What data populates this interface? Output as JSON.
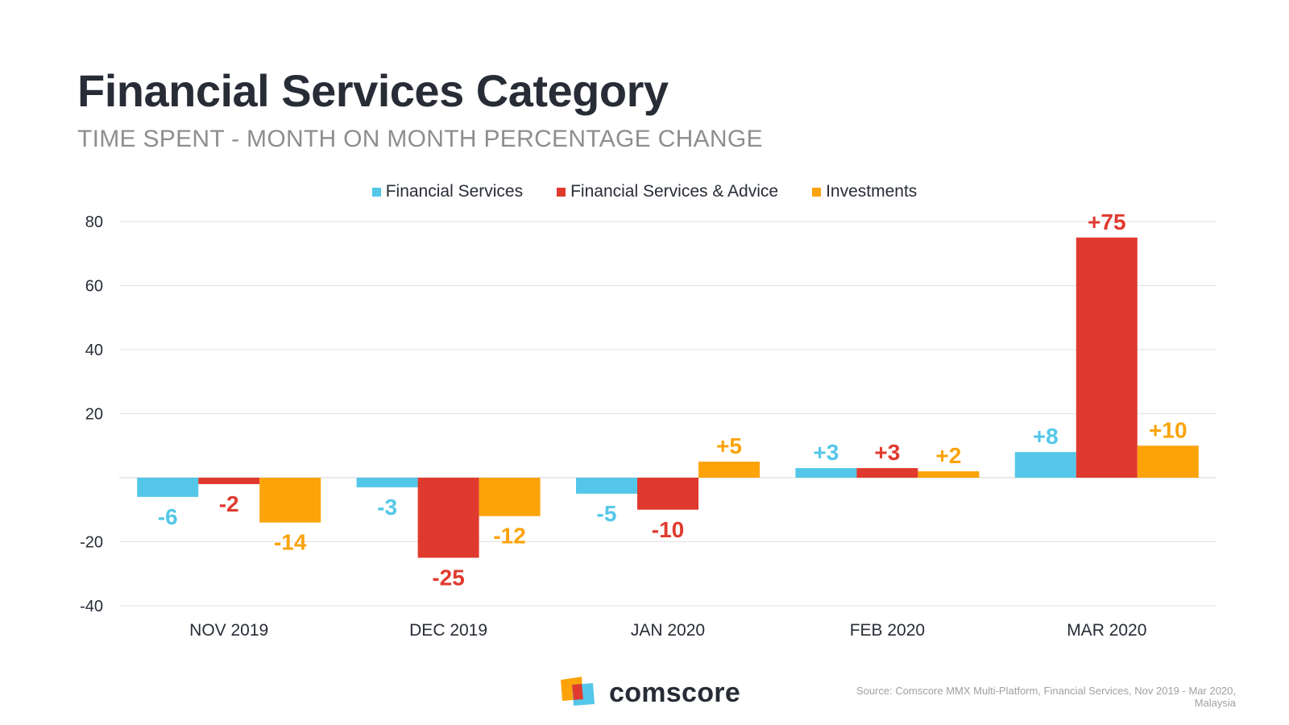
{
  "colors": {
    "financial_services": "#54c7e8",
    "financial_services_advice": "#e03a2f",
    "investments": "#fca30a",
    "grid": "#e2e2e2",
    "axis_text": "#272c36"
  },
  "footer": {
    "brand": "comscore",
    "source": "Source: Comscore MMX Multi-Platform, Financial Services, Nov 2019 - Mar 2020, Malaysia"
  },
  "chart_data": {
    "type": "bar",
    "title": "Financial Services Category",
    "subtitle": "TIME SPENT - MONTH ON MONTH PERCENTAGE CHANGE",
    "categories": [
      "NOV 2019",
      "DEC 2019",
      "JAN 2020",
      "FEB 2020",
      "MAR 2020"
    ],
    "series": [
      {
        "name": "Financial Services",
        "color": "#54c7e8",
        "values": [
          -6,
          -3,
          -5,
          3,
          8
        ],
        "labels": [
          "-6",
          "-3",
          "-5",
          "+3",
          "+8"
        ]
      },
      {
        "name": "Financial Services & Advice",
        "color": "#e03a2f",
        "values": [
          -2,
          -25,
          -10,
          3,
          75
        ],
        "labels": [
          "-2",
          "-25",
          "-10",
          "+3",
          "+75"
        ]
      },
      {
        "name": "Investments",
        "color": "#fca30a",
        "values": [
          -14,
          -12,
          5,
          2,
          10
        ],
        "labels": [
          "-14",
          "-12",
          "+5",
          "+2",
          "+10"
        ]
      }
    ],
    "yticks": [
      -40,
      -20,
      20,
      40,
      60,
      80
    ],
    "ylim": [
      -40,
      80
    ],
    "grid": true,
    "legend": "top-center",
    "xlabel": "",
    "ylabel": ""
  }
}
